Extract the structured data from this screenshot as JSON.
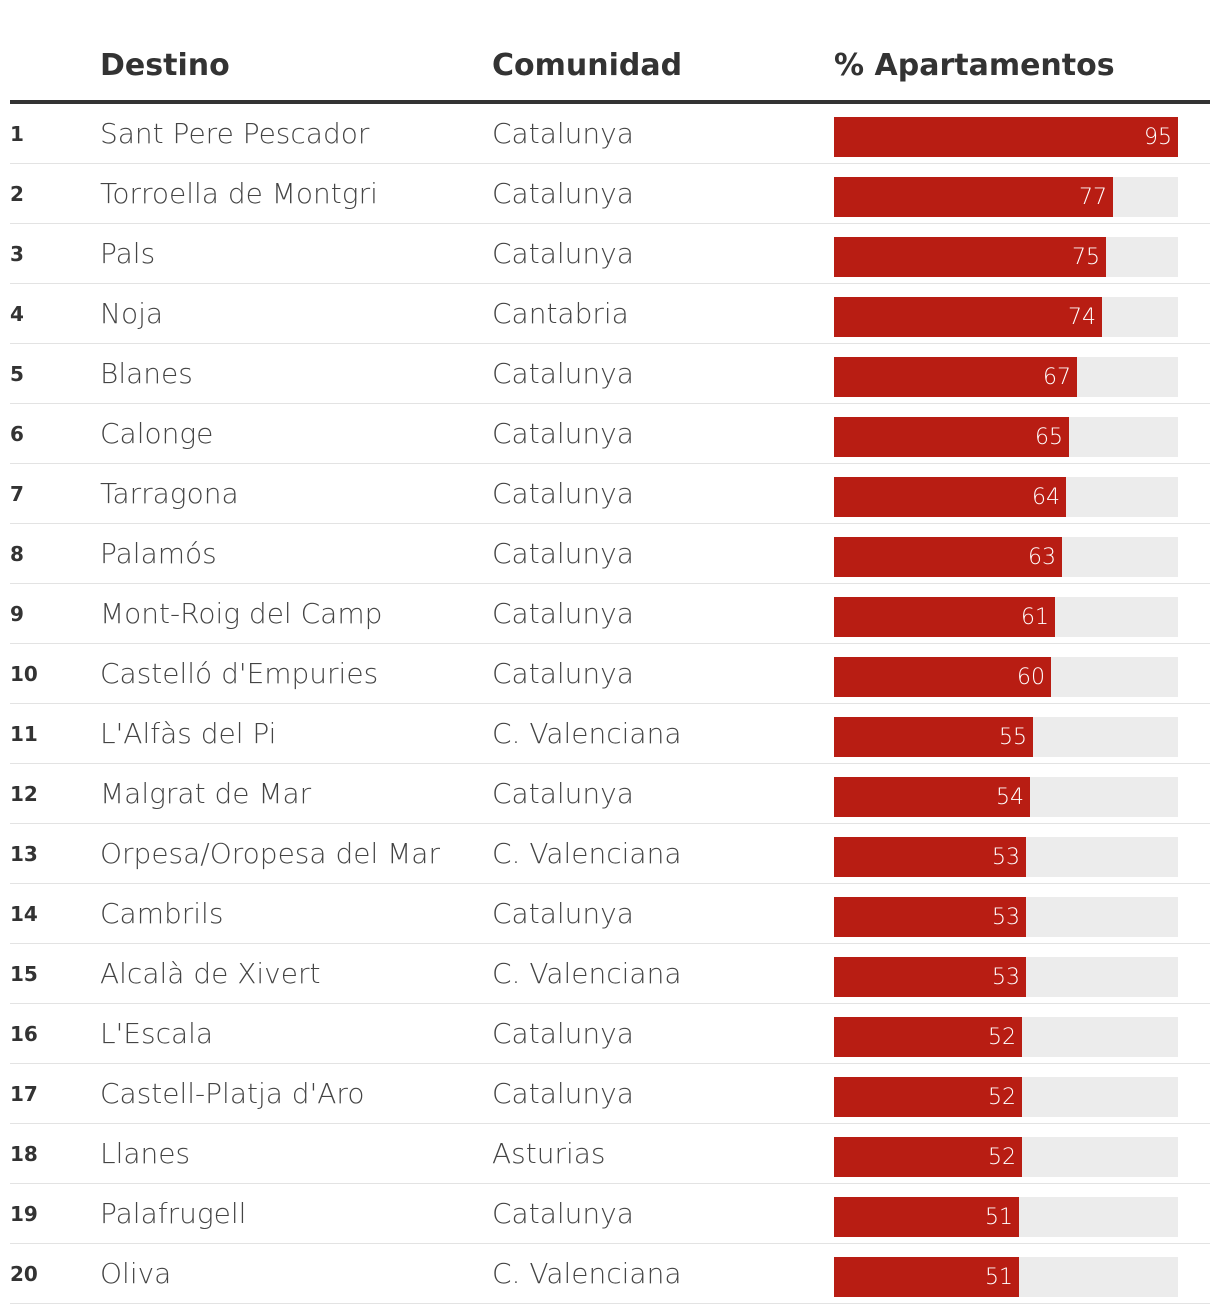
{
  "colors": {
    "bar": "#b81d13",
    "track": "#ececec",
    "header_rule": "#333333",
    "row_divider": "#e3e3e3"
  },
  "header": {
    "destino": "Destino",
    "comunidad": "Comunidad",
    "pct": "% Apartamentos"
  },
  "chart_data": {
    "type": "bar",
    "orientation": "horizontal",
    "title": "",
    "xlabel": "% Apartamentos",
    "ylabel": "Destino",
    "xlim": [
      0,
      95
    ],
    "columns": [
      "",
      "Destino",
      "Comunidad",
      "% Apartamentos"
    ],
    "categories": [
      "Sant Pere Pescador",
      "Torroella de Montgri",
      "Pals",
      "Noja",
      "Blanes",
      "Calonge",
      "Tarragona",
      "Palamós",
      "Mont-Roig del Camp",
      "Castelló d'Empuries",
      "L'Alfàs del Pi",
      "Malgrat de Mar",
      "Orpesa/Oropesa del Mar",
      "Cambrils",
      "Alcalà de Xivert",
      "L'Escala",
      "Castell-Platja d'Aro",
      "Llanes",
      "Palafrugell",
      "Oliva"
    ],
    "values": [
      95,
      77,
      75,
      74,
      67,
      65,
      64,
      63,
      61,
      60,
      55,
      54,
      53,
      53,
      53,
      52,
      52,
      52,
      51,
      51
    ],
    "rows": [
      {
        "rank": "1",
        "destino": "Sant Pere Pescador",
        "comunidad": "Catalunya",
        "value": 95
      },
      {
        "rank": "2",
        "destino": "Torroella de Montgri",
        "comunidad": "Catalunya",
        "value": 77
      },
      {
        "rank": "3",
        "destino": "Pals",
        "comunidad": "Catalunya",
        "value": 75
      },
      {
        "rank": "4",
        "destino": "Noja",
        "comunidad": "Cantabria",
        "value": 74
      },
      {
        "rank": "5",
        "destino": "Blanes",
        "comunidad": "Catalunya",
        "value": 67
      },
      {
        "rank": "6",
        "destino": "Calonge",
        "comunidad": "Catalunya",
        "value": 65
      },
      {
        "rank": "7",
        "destino": "Tarragona",
        "comunidad": "Catalunya",
        "value": 64
      },
      {
        "rank": "8",
        "destino": "Palamós",
        "comunidad": "Catalunya",
        "value": 63
      },
      {
        "rank": "9",
        "destino": "Mont-Roig del Camp",
        "comunidad": "Catalunya",
        "value": 61
      },
      {
        "rank": "10",
        "destino": "Castelló d'Empuries",
        "comunidad": "Catalunya",
        "value": 60
      },
      {
        "rank": "11",
        "destino": "L'Alfàs del Pi",
        "comunidad": "C. Valenciana",
        "value": 55
      },
      {
        "rank": "12",
        "destino": "Malgrat de Mar",
        "comunidad": "Catalunya",
        "value": 54
      },
      {
        "rank": "13",
        "destino": "Orpesa/Oropesa del Mar",
        "comunidad": "C. Valenciana",
        "value": 53
      },
      {
        "rank": "14",
        "destino": "Cambrils",
        "comunidad": "Catalunya",
        "value": 53
      },
      {
        "rank": "15",
        "destino": "Alcalà de Xivert",
        "comunidad": "C. Valenciana",
        "value": 53
      },
      {
        "rank": "16",
        "destino": "L'Escala",
        "comunidad": "Catalunya",
        "value": 52
      },
      {
        "rank": "17",
        "destino": "Castell-Platja d'Aro",
        "comunidad": "Catalunya",
        "value": 52
      },
      {
        "rank": "18",
        "destino": "Llanes",
        "comunidad": "Asturias",
        "value": 52
      },
      {
        "rank": "19",
        "destino": "Palafrugell",
        "comunidad": "Catalunya",
        "value": 51
      },
      {
        "rank": "20",
        "destino": "Oliva",
        "comunidad": "C. Valenciana",
        "value": 51
      }
    ]
  }
}
